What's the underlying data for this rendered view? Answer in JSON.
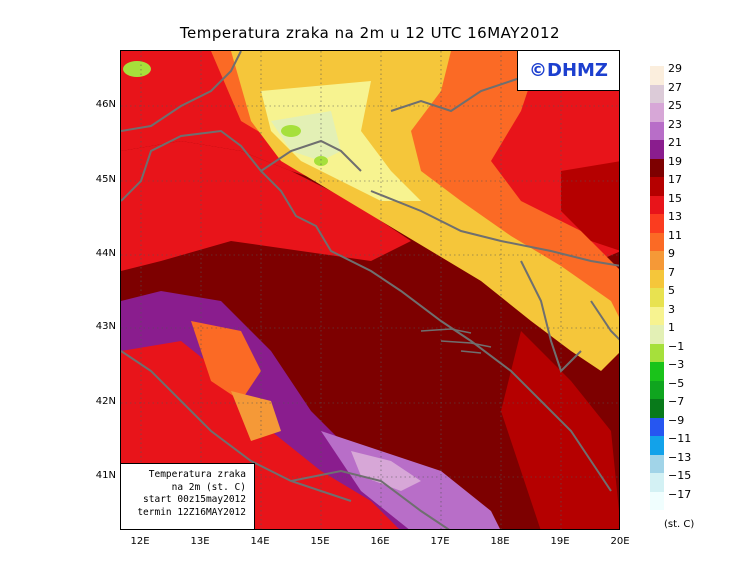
{
  "title": "Temperatura zraka na 2m u 12 UTC 16MAY2012",
  "watermark": "©DHMZ",
  "info": {
    "line1": "Temperatura zraka",
    "line2": "na 2m (st. C)",
    "line3": "start 00z15may2012",
    "line4": "termin 12Z16MAY2012"
  },
  "axes": {
    "lat_labels": [
      "46N",
      "45N",
      "44N",
      "43N",
      "42N",
      "41N"
    ],
    "lon_labels": [
      "12E",
      "13E",
      "14E",
      "15E",
      "16E",
      "17E",
      "18E",
      "19E",
      "20E"
    ]
  },
  "legend": {
    "units": "(st. C)",
    "labels": [
      "29",
      "27",
      "25",
      "23",
      "21",
      "19",
      "17",
      "15",
      "13",
      "11",
      "9",
      "7",
      "5",
      "3",
      "1",
      "−1",
      "−3",
      "−5",
      "−7",
      "−9",
      "−11",
      "−13",
      "−15",
      "−17"
    ],
    "colors": [
      "#fbeedd",
      "#dccbd8",
      "#d7a7d7",
      "#b86ec8",
      "#8a1d8e",
      "#7d0000",
      "#b50000",
      "#e8141a",
      "#fb3c1f",
      "#fb6a25",
      "#f59937",
      "#f5c63a",
      "#e8e250",
      "#f7f390",
      "#e3f0b5",
      "#a6e03b",
      "#1ac31a",
      "#0fa51f",
      "#087a1a",
      "#2656f1",
      "#12a2ea",
      "#a1d4e8",
      "#d3f1f4",
      "#f0fefe"
    ]
  }
}
